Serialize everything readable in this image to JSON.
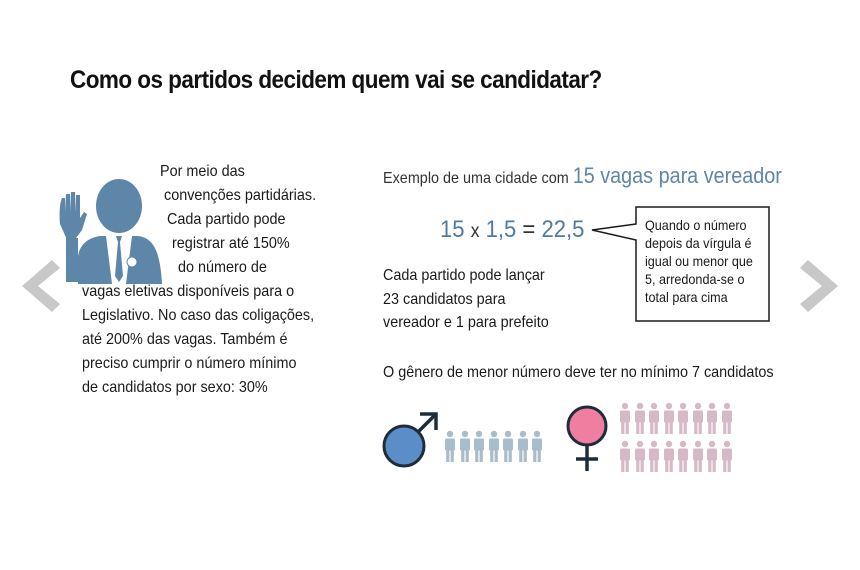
{
  "title": "Como os partidos decidem quem vai se candidatar?",
  "left_panel": {
    "lines": [
      "Por meio das",
      "convenções partidárias.",
      "Cada partido pode",
      "registrar até 150%",
      "do número de",
      "vagas eletivas disponíveis para o",
      "Legislativo. No caso das coligações,",
      "até 200% das vagas. Também é",
      "preciso cumprir o número mínimo",
      "de candidatos por sexo: 30%"
    ],
    "icon": "voter-raising-hand-icon"
  },
  "example": {
    "prefix": "Exemplo de uma cidade com",
    "highlight": "15 vagas para vereador"
  },
  "formula": {
    "a": "15",
    "times": "x",
    "b": "1,5",
    "equals": "=",
    "result": "22,5"
  },
  "callout": {
    "lines": [
      "Quando o número",
      "depois da vírgula é",
      "igual ou menor que",
      "5, arredonda-se o",
      "total para cima"
    ]
  },
  "party_info": {
    "lines": [
      "Cada partido pode lançar",
      "23 candidatos para",
      "vereador e 1 para prefeito"
    ]
  },
  "gender_rule": "O gênero de menor número deve ter no mínimo 7 candidatos",
  "men": {
    "symbol": "male-symbol-icon",
    "count": 7,
    "color": "#a9bccb",
    "symbol_color": "#5b8ec9"
  },
  "women": {
    "symbol": "female-symbol-icon",
    "count": 16,
    "color": "#d6b9c6",
    "symbol_color": "#f07ea0"
  },
  "colors": {
    "nav_arrow": "#c8c8c8",
    "accent_blue": "#4f7ba1",
    "person_blue": "#5e86a8"
  }
}
